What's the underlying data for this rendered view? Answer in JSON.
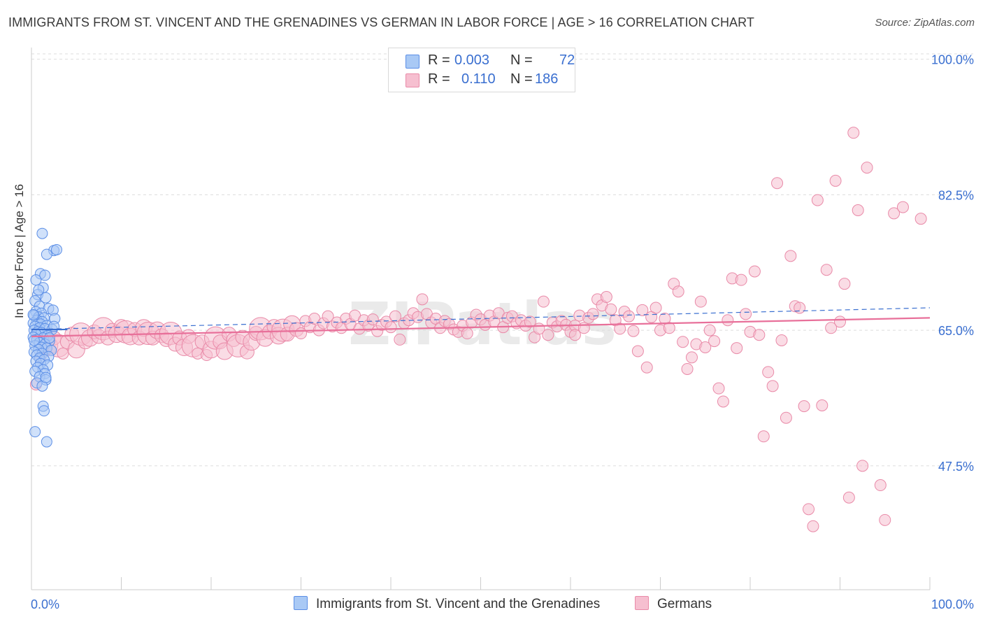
{
  "title": "IMMIGRANTS FROM ST. VINCENT AND THE GRENADINES VS GERMAN IN LABOR FORCE | AGE > 16 CORRELATION CHART",
  "source": "Source: ZipAtlas.com",
  "watermark": "ZIPatlas",
  "legend": {
    "r_label": "R =",
    "n_label": "N =",
    "rows": [
      {
        "r": "0.003",
        "n": "72"
      },
      {
        "r": "0.110",
        "n": "186"
      }
    ]
  },
  "colors": {
    "blue_fill": "#a9c9f5",
    "blue_stroke": "#5b8ee6",
    "blue_line": "#3a6fd0",
    "pink_fill": "#f6bfd0",
    "pink_stroke": "#e98aa8",
    "pink_line": "#e8709a",
    "tick_label": "#3a6fd0",
    "grid": "#dddddd"
  },
  "chart_data": {
    "type": "scatter",
    "title": "IMMIGRANTS FROM ST. VINCENT AND THE GRENADINES VS GERMAN IN LABOR FORCE | AGE > 16 CORRELATION CHART",
    "xlabel": "",
    "ylabel": "In Labor Force | Age > 16",
    "xlim": [
      0,
      100
    ],
    "ylim": [
      31.5,
      101.5
    ],
    "x_tick_labels": [
      "0.0%",
      "100.0%"
    ],
    "y_ticks": [
      47.5,
      65.0,
      82.5,
      100.0
    ],
    "y_tick_labels": [
      "47.5%",
      "65.0%",
      "82.5%",
      "100.0%"
    ],
    "grid": true,
    "legend_position": "top-center",
    "series": [
      {
        "name": "Immigrants from St. Vincent and the Grenadines",
        "r": 0.003,
        "n": 72,
        "trend": {
          "x": [
            0,
            100
          ],
          "y": [
            65.1,
            67.9
          ],
          "style": "dashed"
        },
        "trend_solid": {
          "x": [
            0,
            4
          ],
          "y": [
            65.1,
            65.1
          ]
        },
        "points": [
          [
            1.2,
            77.5
          ],
          [
            2.5,
            75.3
          ],
          [
            1.7,
            74.8
          ],
          [
            2.8,
            75.4
          ],
          [
            1.0,
            72.3
          ],
          [
            1.5,
            72.1
          ],
          [
            0.5,
            71.5
          ],
          [
            1.3,
            70.5
          ],
          [
            0.7,
            69.6
          ],
          [
            1.6,
            69.2
          ],
          [
            0.4,
            68.8
          ],
          [
            0.9,
            68.1
          ],
          [
            1.9,
            67.8
          ],
          [
            2.4,
            67.6
          ],
          [
            0.5,
            67.4
          ],
          [
            1.1,
            67.2
          ],
          [
            0.3,
            66.9
          ],
          [
            0.8,
            66.7
          ],
          [
            1.4,
            66.6
          ],
          [
            2.6,
            66.5
          ],
          [
            0.6,
            66.3
          ],
          [
            1.2,
            66.1
          ],
          [
            0.2,
            65.9
          ],
          [
            1.0,
            65.8
          ],
          [
            1.7,
            65.6
          ],
          [
            0.4,
            65.5
          ],
          [
            0.9,
            65.3
          ],
          [
            1.5,
            65.2
          ],
          [
            2.3,
            65.1
          ],
          [
            0.3,
            65.0
          ],
          [
            0.7,
            64.8
          ],
          [
            1.1,
            64.7
          ],
          [
            0.5,
            64.5
          ],
          [
            1.8,
            64.3
          ],
          [
            0.2,
            64.1
          ],
          [
            1.3,
            64.0
          ],
          [
            0.6,
            63.8
          ],
          [
            2.0,
            63.6
          ],
          [
            0.9,
            63.4
          ],
          [
            1.5,
            63.2
          ],
          [
            0.4,
            63.0
          ],
          [
            1.1,
            62.8
          ],
          [
            1.7,
            62.7
          ],
          [
            0.8,
            62.5
          ],
          [
            2.2,
            62.4
          ],
          [
            0.3,
            62.2
          ],
          [
            1.2,
            62.0
          ],
          [
            0.6,
            61.8
          ],
          [
            1.9,
            61.6
          ],
          [
            0.9,
            61.4
          ],
          [
            1.4,
            61.2
          ],
          [
            0.5,
            61.0
          ],
          [
            1.0,
            60.7
          ],
          [
            1.8,
            60.5
          ],
          [
            0.7,
            60.2
          ],
          [
            1.3,
            59.9
          ],
          [
            0.4,
            59.7
          ],
          [
            1.5,
            59.4
          ],
          [
            0.9,
            59.0
          ],
          [
            1.6,
            58.6
          ],
          [
            0.6,
            58.2
          ],
          [
            1.2,
            57.8
          ],
          [
            1.3,
            55.2
          ],
          [
            1.4,
            54.6
          ],
          [
            0.4,
            51.9
          ],
          [
            1.7,
            50.6
          ],
          [
            2.5,
            65.5
          ],
          [
            0.2,
            67.0
          ],
          [
            2.0,
            64.0
          ],
          [
            0.8,
            70.2
          ],
          [
            1.6,
            58.9
          ],
          [
            0.3,
            63.7
          ]
        ]
      },
      {
        "name": "Germans",
        "r": 0.11,
        "n": 186,
        "trend": {
          "x": [
            0,
            100
          ],
          "y": [
            64.2,
            66.6
          ],
          "style": "solid"
        },
        "points": [
          [
            0.5,
            58.0
          ],
          [
            1.0,
            61.5
          ],
          [
            1.5,
            62.5
          ],
          [
            2.0,
            63.0
          ],
          [
            2.5,
            64.0
          ],
          [
            3.0,
            63.0
          ],
          [
            3.5,
            62.0
          ],
          [
            4.0,
            63.5
          ],
          [
            4.5,
            64.5
          ],
          [
            5.0,
            62.5
          ],
          [
            5.5,
            64.5
          ],
          [
            6.0,
            63.5
          ],
          [
            6.5,
            64.0
          ],
          [
            7.0,
            64.8
          ],
          [
            7.5,
            64.2
          ],
          [
            8.0,
            65.2
          ],
          [
            8.5,
            64.0
          ],
          [
            9.0,
            65.0
          ],
          [
            9.5,
            64.5
          ],
          [
            10.0,
            65.5
          ],
          [
            10.5,
            64.8
          ],
          [
            11.0,
            64.2
          ],
          [
            11.5,
            65.1
          ],
          [
            12.0,
            64.0
          ],
          [
            12.5,
            65.3
          ],
          [
            13.0,
            64.6
          ],
          [
            13.5,
            64.0
          ],
          [
            14.0,
            65.0
          ],
          [
            14.5,
            64.3
          ],
          [
            15.0,
            63.8
          ],
          [
            15.5,
            64.6
          ],
          [
            16.0,
            63.2
          ],
          [
            16.5,
            64.0
          ],
          [
            17.0,
            62.8
          ],
          [
            17.5,
            64.2
          ],
          [
            18.0,
            63.0
          ],
          [
            18.5,
            62.0
          ],
          [
            19.0,
            63.5
          ],
          [
            19.5,
            61.8
          ],
          [
            20.0,
            62.5
          ],
          [
            20.5,
            64.0
          ],
          [
            21.0,
            63.5
          ],
          [
            21.5,
            62.3
          ],
          [
            22.0,
            64.5
          ],
          [
            22.5,
            63.8
          ],
          [
            23.0,
            63.0
          ],
          [
            23.5,
            64.1
          ],
          [
            24.0,
            62.2
          ],
          [
            24.5,
            63.5
          ],
          [
            25.0,
            64.6
          ],
          [
            25.5,
            65.2
          ],
          [
            26.0,
            64.0
          ],
          [
            26.5,
            64.8
          ],
          [
            27.0,
            65.5
          ],
          [
            27.5,
            64.3
          ],
          [
            28.0,
            65.0
          ],
          [
            28.5,
            64.5
          ],
          [
            29.0,
            65.8
          ],
          [
            29.5,
            65.1
          ],
          [
            30.0,
            64.6
          ],
          [
            30.5,
            66.2
          ],
          [
            31.0,
            65.4
          ],
          [
            31.5,
            66.5
          ],
          [
            32.0,
            65.0
          ],
          [
            32.5,
            65.9
          ],
          [
            33.0,
            66.8
          ],
          [
            33.5,
            65.5
          ],
          [
            34.0,
            66.0
          ],
          [
            34.5,
            65.3
          ],
          [
            35.0,
            66.5
          ],
          [
            35.5,
            65.8
          ],
          [
            36.0,
            66.9
          ],
          [
            36.5,
            65.2
          ],
          [
            37.0,
            66.3
          ],
          [
            37.5,
            65.6
          ],
          [
            38.0,
            66.4
          ],
          [
            38.5,
            64.9
          ],
          [
            39.0,
            65.7
          ],
          [
            39.5,
            66.1
          ],
          [
            40.0,
            65.4
          ],
          [
            40.5,
            66.8
          ],
          [
            41.0,
            63.8
          ],
          [
            41.5,
            65.9
          ],
          [
            42.0,
            66.3
          ],
          [
            42.5,
            67.2
          ],
          [
            43.0,
            66.7
          ],
          [
            43.5,
            69.0
          ],
          [
            44.0,
            67.1
          ],
          [
            44.5,
            66.0
          ],
          [
            45.0,
            66.5
          ],
          [
            45.5,
            65.3
          ],
          [
            46.0,
            66.2
          ],
          [
            46.5,
            65.8
          ],
          [
            47.0,
            65.1
          ],
          [
            47.5,
            64.8
          ],
          [
            48.0,
            65.6
          ],
          [
            48.5,
            64.6
          ],
          [
            49.0,
            66.0
          ],
          [
            49.5,
            67.0
          ],
          [
            50.0,
            66.4
          ],
          [
            50.5,
            65.7
          ],
          [
            51.0,
            66.9
          ],
          [
            51.5,
            66.1
          ],
          [
            52.0,
            67.2
          ],
          [
            52.5,
            65.4
          ],
          [
            53.0,
            66.6
          ],
          [
            53.5,
            66.8
          ],
          [
            54.0,
            65.9
          ],
          [
            54.5,
            66.3
          ],
          [
            55.0,
            65.6
          ],
          [
            55.5,
            66.1
          ],
          [
            56.0,
            64.1
          ],
          [
            56.5,
            65.2
          ],
          [
            57.0,
            68.7
          ],
          [
            57.5,
            64.4
          ],
          [
            58.0,
            66.0
          ],
          [
            58.5,
            65.5
          ],
          [
            59.0,
            66.2
          ],
          [
            59.5,
            65.7
          ],
          [
            60.0,
            64.8
          ],
          [
            60.5,
            65.6
          ],
          [
            61.0,
            66.9
          ],
          [
            61.5,
            65.3
          ],
          [
            62.0,
            66.6
          ],
          [
            62.5,
            67.1
          ],
          [
            63.0,
            69.0
          ],
          [
            63.5,
            68.2
          ],
          [
            64.0,
            69.3
          ],
          [
            64.5,
            67.7
          ],
          [
            65.0,
            66.3
          ],
          [
            65.5,
            65.2
          ],
          [
            66.0,
            67.4
          ],
          [
            66.5,
            66.8
          ],
          [
            67.0,
            64.9
          ],
          [
            67.5,
            62.3
          ],
          [
            68.0,
            67.6
          ],
          [
            68.5,
            60.2
          ],
          [
            69.0,
            66.7
          ],
          [
            69.5,
            67.9
          ],
          [
            70.0,
            65.0
          ],
          [
            70.5,
            66.5
          ],
          [
            71.0,
            65.3
          ],
          [
            71.5,
            71.0
          ],
          [
            72.0,
            70.0
          ],
          [
            72.5,
            63.5
          ],
          [
            73.0,
            60.0
          ],
          [
            73.5,
            61.5
          ],
          [
            74.0,
            63.2
          ],
          [
            74.5,
            68.7
          ],
          [
            75.0,
            62.8
          ],
          [
            75.5,
            65.0
          ],
          [
            76.0,
            63.6
          ],
          [
            76.5,
            57.5
          ],
          [
            77.0,
            55.8
          ],
          [
            77.5,
            66.3
          ],
          [
            78.0,
            71.7
          ],
          [
            78.5,
            62.7
          ],
          [
            79.0,
            71.5
          ],
          [
            79.5,
            67.1
          ],
          [
            80.0,
            64.8
          ],
          [
            80.5,
            72.6
          ],
          [
            81.0,
            64.4
          ],
          [
            81.5,
            51.3
          ],
          [
            82.0,
            59.6
          ],
          [
            82.5,
            57.8
          ],
          [
            83.0,
            84.0
          ],
          [
            83.5,
            63.7
          ],
          [
            84.0,
            53.7
          ],
          [
            84.5,
            74.6
          ],
          [
            85.0,
            68.1
          ],
          [
            85.5,
            67.9
          ],
          [
            86.0,
            55.2
          ],
          [
            86.5,
            41.9
          ],
          [
            87.0,
            39.7
          ],
          [
            87.5,
            81.8
          ],
          [
            88.0,
            55.3
          ],
          [
            88.5,
            72.8
          ],
          [
            89.0,
            65.3
          ],
          [
            89.5,
            84.3
          ],
          [
            90.0,
            66.1
          ],
          [
            90.5,
            71.0
          ],
          [
            91.0,
            43.4
          ],
          [
            91.5,
            90.5
          ],
          [
            92.0,
            80.5
          ],
          [
            92.5,
            47.5
          ],
          [
            93.0,
            86.0
          ],
          [
            94.5,
            45.0
          ],
          [
            95.0,
            40.5
          ],
          [
            96.0,
            80.1
          ],
          [
            97.0,
            80.9
          ],
          [
            99.0,
            79.4
          ],
          [
            60.5,
            64.4
          ]
        ]
      }
    ]
  },
  "bottom_legend": [
    {
      "label": "Immigrants from St. Vincent and the Grenadines"
    },
    {
      "label": "Germans"
    }
  ]
}
